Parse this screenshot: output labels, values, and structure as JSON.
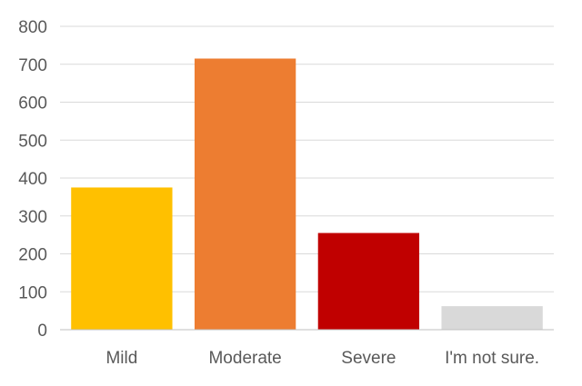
{
  "chart_data": {
    "type": "bar",
    "title": "",
    "xlabel": "",
    "ylabel": "",
    "categories": [
      "Mild",
      "Moderate",
      "Severe",
      "I'm not sure."
    ],
    "values": [
      375,
      715,
      255,
      62
    ],
    "colors": [
      "#FFC000",
      "#ED7D31",
      "#C00000",
      "#D9D9D9"
    ],
    "ylim": [
      0,
      800
    ],
    "yticks": [
      "0",
      "100",
      "200",
      "300",
      "400",
      "500",
      "600",
      "700",
      "800"
    ],
    "grid": true,
    "legend": "none"
  }
}
